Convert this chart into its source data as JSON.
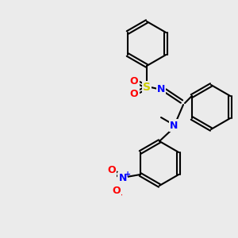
{
  "bg_color": "#ebebeb",
  "bond_color": "#000000",
  "bond_width": 1.5,
  "atom_colors": {
    "N": "#0000ff",
    "S": "#cccc00",
    "O": "#ff0000",
    "C": "#000000"
  },
  "font_size_atom": 9,
  "font_size_small": 7
}
